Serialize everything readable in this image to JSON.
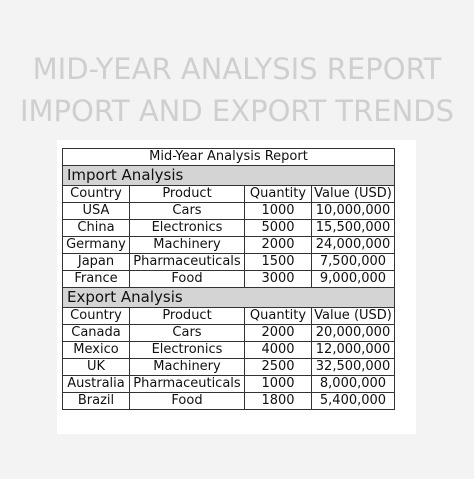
{
  "heading": {
    "line1": "MID-YEAR ANALYSIS REPORT",
    "line2": "IMPORT AND EXPORT TRENDS"
  },
  "table": {
    "title": "Mid-Year Analysis Report",
    "columns": [
      "Country",
      "Product",
      "Quantity",
      "Value (USD)"
    ],
    "import": {
      "label": "Import Analysis",
      "rows": [
        [
          "USA",
          "Cars",
          "1000",
          "10,000,000"
        ],
        [
          "China",
          "Electronics",
          "5000",
          "15,500,000"
        ],
        [
          "Germany",
          "Machinery",
          "2000",
          "24,000,000"
        ],
        [
          "Japan",
          "Pharmaceuticals",
          "1500",
          "7,500,000"
        ],
        [
          "France",
          "Food",
          "3000",
          "9,000,000"
        ]
      ]
    },
    "export": {
      "label": "Export Analysis",
      "rows": [
        [
          "Canada",
          "Cars",
          "2000",
          "20,000,000"
        ],
        [
          "Mexico",
          "Electronics",
          "4000",
          "12,000,000"
        ],
        [
          "UK",
          "Machinery",
          "2500",
          "32,500,000"
        ],
        [
          "Australia",
          "Pharmaceuticals",
          "1000",
          "8,000,000"
        ],
        [
          "Brazil",
          "Food",
          "1800",
          "5,400,000"
        ]
      ]
    }
  }
}
